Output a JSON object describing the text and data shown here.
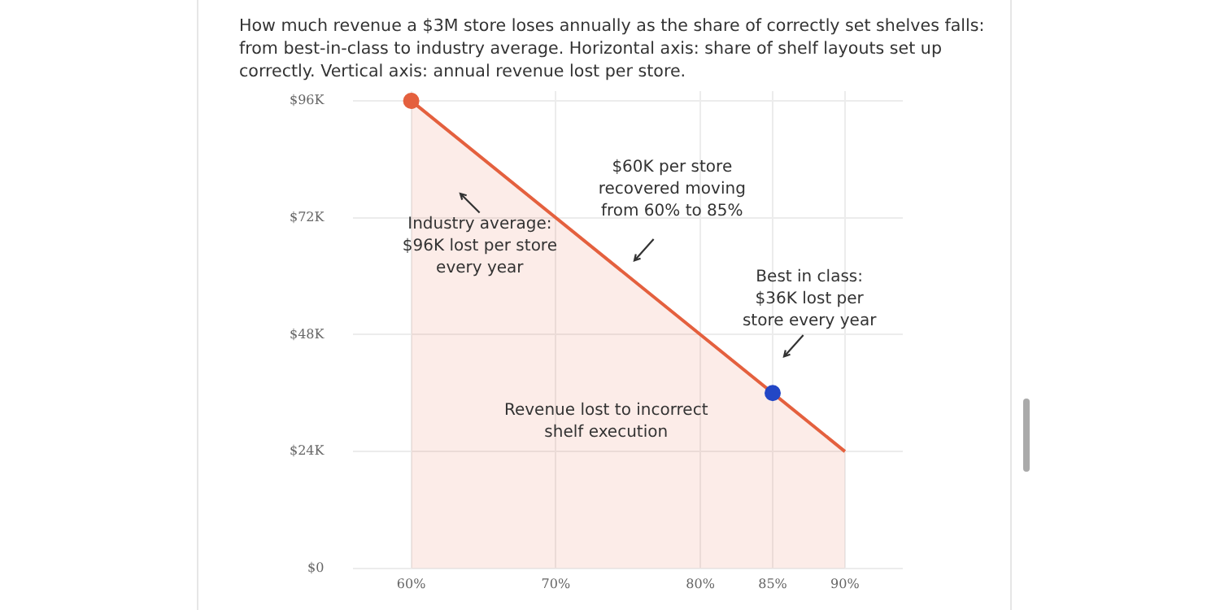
{
  "chart_data": {
    "type": "area",
    "subtitle": "How much revenue a $3M store loses annually as the share of correctly set shelves falls: from best-in-class to industry average. Horizontal axis: share of shelf layouts set up correctly. Vertical axis: annual revenue lost per store.",
    "series": [
      {
        "color": "#e4603e",
        "x": [
          60,
          90
        ],
        "values": [
          96,
          24
        ]
      },
      {
        "type": "scatter",
        "marker": "circle",
        "colors": [
          "#e4603e",
          "#2347c6"
        ],
        "x": [
          60,
          85
        ],
        "values": [
          96,
          36
        ]
      }
    ],
    "xlim": [
      56,
      94
    ],
    "xticks": [
      {
        "value": 60,
        "label": "60%"
      },
      {
        "value": 70,
        "label": "70%"
      },
      {
        "value": 80,
        "label": "80%"
      },
      {
        "value": 85,
        "label": "85%"
      },
      {
        "value": 90,
        "label": "90%"
      }
    ],
    "ylim": [
      0,
      98
    ],
    "yticks": [
      {
        "value": 0,
        "label": "$0"
      },
      {
        "value": 24,
        "label": "$24K"
      },
      {
        "value": 48,
        "label": "$48K"
      },
      {
        "value": 72,
        "label": "$72K"
      },
      {
        "value": 96,
        "label": "$96K"
      }
    ],
    "grid": true,
    "annotations": [
      "Industry average:\n$96K lost per store\nevery year",
      "$60K per store\nrecovered moving\nfrom 60% to 85%",
      "Best in class:\n$36K lost per\nstore every year",
      "Revenue lost to incorrect\nshelf execution"
    ]
  }
}
